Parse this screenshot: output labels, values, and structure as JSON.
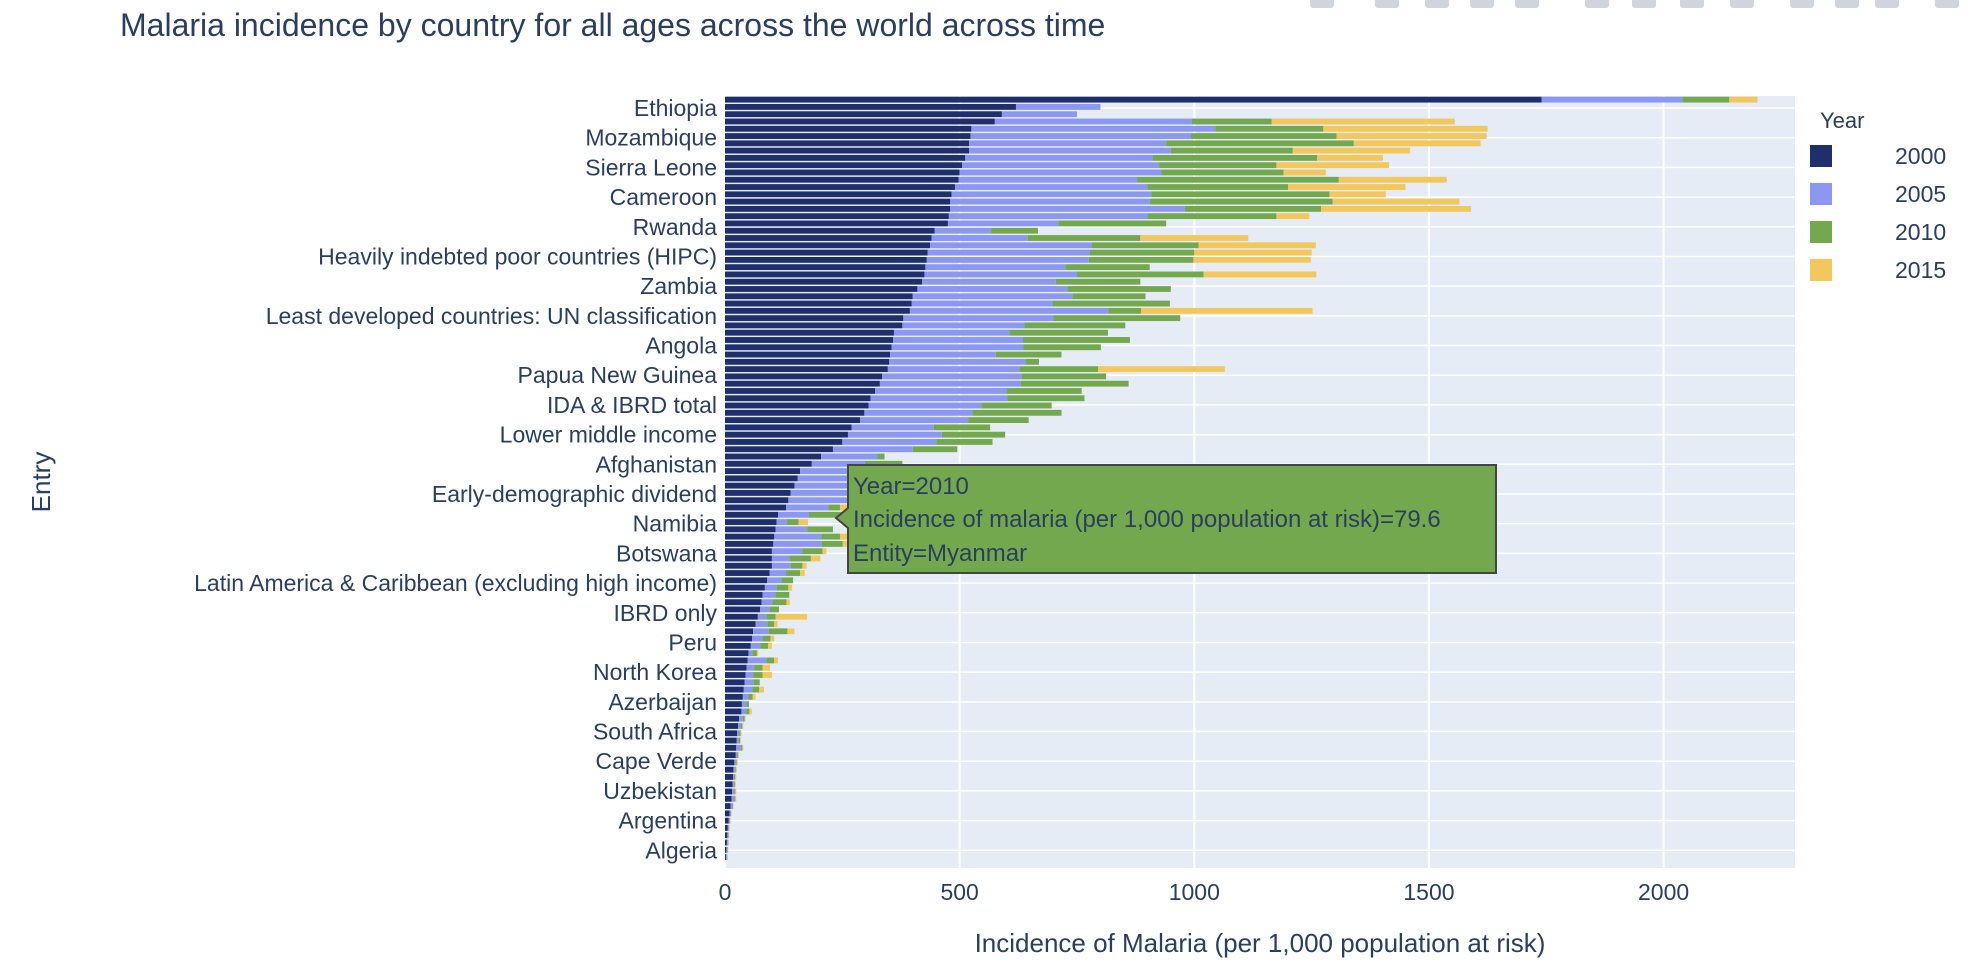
{
  "chart_data": {
    "type": "bar",
    "orientation": "horizontal",
    "barmode": "stacked",
    "title": "Malaria incidence by country for all ages across the world across time",
    "xlabel": "Incidence of Malaria (per 1,000 population at risk)",
    "ylabel": "Entry",
    "xlim": [
      0,
      2280
    ],
    "xticks": [
      "0",
      "500",
      "1000",
      "1500",
      "2000"
    ],
    "grid": true,
    "legend_title": "Year",
    "legend_position": "right",
    "labeled_categories": [
      "Ethiopia",
      "Mozambique",
      "Sierra Leone",
      "Cameroon",
      "Rwanda",
      "Heavily indebted poor countries (HIPC)",
      "Zambia",
      "Least developed countries: UN classification",
      "Angola",
      "Papua New Guinea",
      "IDA & IBRD total",
      "Lower middle income",
      "Afghanistan",
      "Early-demographic dividend",
      "Namibia",
      "Botswana",
      "Latin America & Caribbean (excluding high income)",
      "IBRD only",
      "Peru",
      "North Korea",
      "Azerbaijan",
      "South Africa",
      "Cape Verde",
      "Uzbekistan",
      "Argentina",
      "Algeria"
    ],
    "series": [
      {
        "name": "2000",
        "color": "#1f2f6b",
        "values": [
          1740,
          620,
          590,
          575,
          525,
          523,
          520,
          520,
          512,
          505,
          500,
          498,
          490,
          483,
          480,
          480,
          477,
          475,
          447,
          440,
          437,
          432,
          430,
          427,
          425,
          420,
          410,
          400,
          398,
          394,
          380,
          378,
          360,
          358,
          355,
          352,
          350,
          347,
          335,
          330,
          320,
          310,
          306,
          297,
          288,
          270,
          262,
          250,
          230,
          205,
          185,
          160,
          155,
          148,
          140,
          135,
          130,
          113,
          110,
          108,
          105,
          103,
          100,
          100,
          100,
          95,
          90,
          85,
          80,
          78,
          75,
          70,
          65,
          60,
          58,
          55,
          50,
          48,
          46,
          44,
          42,
          40,
          38,
          36,
          35,
          30,
          28,
          26,
          25,
          24,
          23,
          20,
          18,
          17,
          16,
          15,
          14,
          12,
          10,
          8,
          6,
          5,
          4,
          3,
          2,
          0
        ]
      },
      {
        "name": "2005",
        "color": "#8c97f2",
        "values": [
          300,
          180,
          160,
          420,
          520,
          470,
          420,
          430,
          400,
          420,
          430,
          380,
          410,
          425,
          425,
          500,
          423,
          235,
          120,
          205,
          345,
          345,
          345,
          298,
          325,
          285,
          320,
          340,
          300,
          423,
          320,
          260,
          246,
          277,
          281,
          225,
          290,
          280,
          297,
          300,
          280,
          292,
          240,
          230,
          230,
          175,
          200,
          200,
          170,
          120,
          113,
          138,
          145,
          135,
          145,
          130,
          90,
          66,
          22,
          67,
          100,
          103,
          65,
          37,
          40,
          35,
          30,
          25,
          27,
          23,
          20,
          18,
          25,
          33,
          22,
          20,
          8,
          40,
          16,
          16,
          19,
          18,
          12,
          10,
          10,
          8,
          6,
          4,
          4,
          10,
          3,
          3,
          3,
          3,
          3,
          5,
          6,
          4,
          2,
          2,
          2,
          2,
          2,
          2,
          2,
          0
        ]
      },
      {
        "name": "2010",
        "color": "#74a84f",
        "values": [
          100,
          0,
          0,
          170,
          230,
          310,
          400,
          260,
          350,
          250,
          260,
          430,
          300,
          380,
          390,
          290,
          275,
          230,
          100,
          240,
          227,
          223,
          223,
          180,
          270,
          180,
          220,
          156,
          250,
          70,
          270,
          215,
          210,
          228,
          165,
          140,
          29,
          168,
          180,
          230,
          160,
          164,
          150,
          190,
          129,
          120,
          135,
          120,
          95,
          15,
          80,
          88,
          90,
          105,
          86,
          80,
          25,
          77,
          25,
          55,
          40,
          45,
          43,
          46,
          25,
          30,
          25,
          25,
          30,
          30,
          20,
          20,
          15,
          40,
          17,
          17,
          10,
          17,
          18,
          20,
          13,
          15,
          9,
          5,
          7,
          4,
          3,
          3,
          3,
          3,
          2,
          2,
          2,
          2,
          2,
          2,
          2,
          1,
          1,
          1,
          1,
          1,
          1,
          1,
          1,
          0
        ]
      },
      {
        "name": "2015",
        "color": "#f2c75c",
        "values": [
          60,
          0,
          0,
          390,
          350,
          320,
          270,
          250,
          140,
          240,
          90,
          230,
          250,
          120,
          270,
          320,
          70,
          0,
          0,
          230,
          250,
          250,
          250,
          0,
          240,
          0,
          0,
          0,
          0,
          365,
          0,
          0,
          0,
          0,
          0,
          0,
          0,
          270,
          0,
          0,
          0,
          0,
          0,
          0,
          0,
          0,
          0,
          0,
          0,
          0,
          0,
          90,
          90,
          95,
          70,
          55,
          90,
          80,
          20,
          0,
          20,
          40,
          8,
          20,
          9,
          10,
          0,
          8,
          0,
          7,
          0,
          67,
          7,
          15,
          8,
          8,
          3,
          8,
          16,
          20,
          0,
          10,
          6,
          0,
          5,
          2,
          2,
          2,
          2,
          2,
          2,
          2,
          2,
          2,
          2,
          2,
          2,
          1,
          1,
          1,
          1,
          1,
          1,
          1,
          0,
          0
        ]
      }
    ]
  },
  "hover": {
    "line1": "Year=2010",
    "line2": "Incidence of malaria (per 1,000 population at risk)=79.6",
    "line3": "Entity=Myanmar",
    "bg_color": "#74a84f"
  },
  "modebar": [
    "camera-icon",
    "zoom-icon",
    "pan-icon",
    "box-select-icon",
    "lasso-icon",
    "zoom-in-icon",
    "zoom-out-icon",
    "autoscale-icon",
    "reset-axes-icon",
    "spike-lines-icon",
    "hover-closest-icon",
    "hover-compare-icon",
    "plotly-logo-icon"
  ]
}
